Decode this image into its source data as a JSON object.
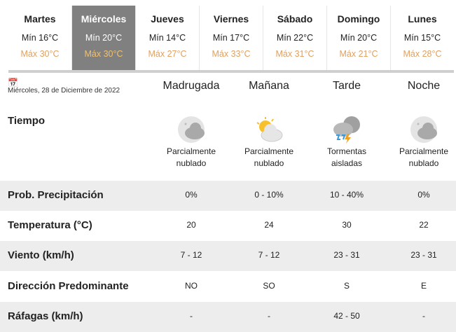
{
  "days": [
    {
      "name": "Martes",
      "min": "Mín 16°C",
      "max": "Máx 30°C"
    },
    {
      "name": "Miércoles",
      "min": "Mín 20°C",
      "max": "Máx 30°C",
      "selected": true
    },
    {
      "name": "Jueves",
      "min": "Mín 14°C",
      "max": "Máx 27°C"
    },
    {
      "name": "Viernes",
      "min": "Mín 17°C",
      "max": "Máx 33°C"
    },
    {
      "name": "Sábado",
      "min": "Mín 22°C",
      "max": "Máx 31°C"
    },
    {
      "name": "Domingo",
      "min": "Mín 20°C",
      "max": "Máx 21°C"
    },
    {
      "name": "Lunes",
      "min": "Mín 15°C",
      "max": "Máx 28°C"
    }
  ],
  "date": "Miércoles, 28 de Diciembre de 2022",
  "periods": [
    "Madrugada",
    "Mañana",
    "Tarde",
    "Noche"
  ],
  "weather": {
    "label": "Tiempo",
    "items": [
      {
        "icon": "moon-cloud-icon",
        "l1": "Parcialmente",
        "l2": "nublado"
      },
      {
        "icon": "sun-cloud-icon",
        "l1": "Parcialmente",
        "l2": "nublado"
      },
      {
        "icon": "storm-icon",
        "l1": "Tormentas",
        "l2": "aisladas"
      },
      {
        "icon": "moon-cloud-icon",
        "l1": "Parcialmente",
        "l2": "nublado"
      }
    ]
  },
  "rows": [
    {
      "label": "Prob. Precipitación",
      "values": [
        "0%",
        "0 - 10%",
        "10 - 40%",
        "0%"
      ]
    },
    {
      "label": "Temperatura (°C)",
      "values": [
        "20",
        "24",
        "30",
        "22"
      ]
    },
    {
      "label": "Viento (km/h)",
      "values": [
        "7 - 12",
        "7 - 12",
        "23 - 31",
        "23 - 31"
      ]
    },
    {
      "label": "Dirección Predominante",
      "values": [
        "NO",
        "SO",
        "S",
        "E"
      ]
    },
    {
      "label": "Ráfagas (km/h)",
      "values": [
        "-",
        "-",
        "42 - 50",
        "-"
      ]
    }
  ],
  "colors": {
    "selected": "#808080",
    "max": "#e0a060",
    "shade": "#ededed"
  }
}
